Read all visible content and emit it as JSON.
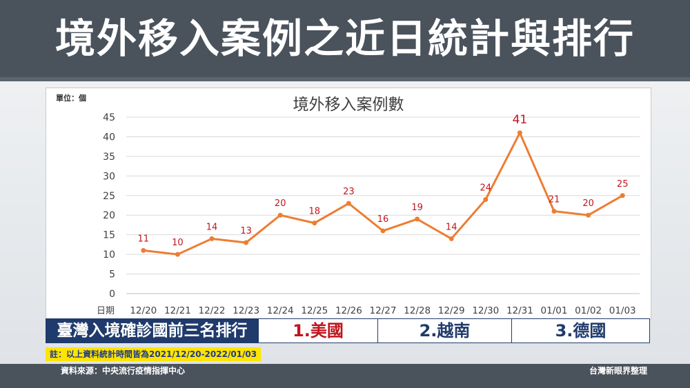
{
  "header": {
    "title": "境外移入案例之近日統計與排行"
  },
  "chart_data": {
    "type": "line",
    "title": "境外移入案例數",
    "unit_label": "單位：個",
    "xlabel": "日期",
    "categories": [
      "12/20",
      "12/21",
      "12/22",
      "12/23",
      "12/24",
      "12/25",
      "12/26",
      "12/27",
      "12/28",
      "12/29",
      "12/30",
      "12/31",
      "01/01",
      "01/02",
      "01/03"
    ],
    "values": [
      11,
      10,
      14,
      13,
      20,
      18,
      23,
      16,
      19,
      14,
      24,
      41,
      21,
      20,
      25
    ],
    "yticks": [
      "0",
      "5",
      "10",
      "15",
      "20",
      "25",
      "30",
      "35",
      "40",
      "45"
    ],
    "ylim": [
      0,
      45
    ],
    "grid": true,
    "legend": "none",
    "line_color": "#ed7d31",
    "label_color": "#c0141c"
  },
  "ranking": {
    "label": "臺灣入境確診國前三名排行",
    "items": [
      "1.美國",
      "2.越南",
      "3.德國"
    ]
  },
  "note": "註：以上資料統計時間皆為2021/12/20-2022/01/03",
  "footer": {
    "source": "資料來源：中央流行疫情指揮中心",
    "credit": "台灣新眼界整理"
  }
}
